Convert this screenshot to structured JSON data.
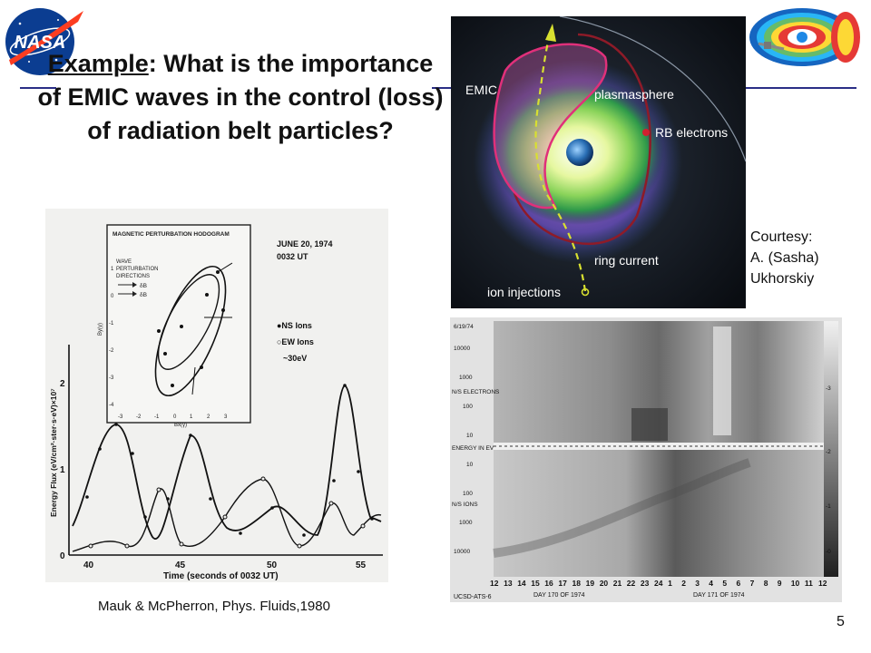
{
  "slide": {
    "title_prefix": "Example",
    "title_rest": ": What is the importance of EMIC waves in the control (loss) of radiation belt particles?",
    "courtesy_lines": [
      "Courtesy:",
      "A. (Sasha)",
      "Ukhorskiy"
    ],
    "citation": "Mauk & McPherron, Phys. Fluids,1980",
    "page_number": "5"
  },
  "logo": {
    "text": "NASA"
  },
  "colors": {
    "accent_rule": "#2a2e86",
    "nasa_blue": "#0b3d91",
    "nasa_red": "#fc3d21"
  },
  "diagram": {
    "labels": {
      "emic": "EMIC",
      "plasmasphere": "plasmasphere",
      "rb_electrons": "RB electrons",
      "ring_current": "ring current",
      "ion_injections": "ion injections"
    }
  },
  "figure_left": {
    "inset_title": "MAGNETIC PERTURBATION HODOGRAM",
    "inset_legend_lines": [
      "WAVE",
      "PERTURBATION",
      "DIRECTIONS"
    ],
    "inset_arrow_labels": [
      "δB",
      "δB"
    ],
    "inset_xticks": [
      "-3",
      "-2",
      "-1",
      "0",
      "1",
      "2",
      "3"
    ],
    "inset_xlabel": "Bx(γ)",
    "inset_yticks": [
      "1",
      "0",
      "-1",
      "-2",
      "-3",
      "-4"
    ],
    "inset_ylabel": "By(γ)",
    "date": "JUNE 20, 1974",
    "time": "0032 UT",
    "legend_ns": "●NS Ions",
    "legend_ew": "○EW Ions",
    "legend_energy": "~30eV",
    "ylabel": "Energy Flux (eV/cm²·ster·s·eV)×10⁷",
    "yticks": [
      "0",
      "1",
      "2"
    ],
    "xticks": [
      "40",
      "45",
      "50",
      "55"
    ],
    "xlabel": "Time (seconds of 0032 UT)"
  },
  "spectrogram": {
    "header": "6/19/74",
    "electrons_label": "N/S ELECTRONS",
    "ions_label": "N/S IONS",
    "energy_label": "ENERGY IN EV",
    "yticks_top": [
      "10000",
      "1000",
      "100",
      "10"
    ],
    "yticks_bottom": [
      "10",
      "100",
      "1000",
      "10000"
    ],
    "hours": [
      "12",
      "13",
      "14",
      "15",
      "16",
      "17",
      "18",
      "19",
      "20",
      "21",
      "22",
      "23",
      "24",
      "1",
      "2",
      "3",
      "4",
      "5",
      "6",
      "7",
      "8",
      "9",
      "10",
      "11",
      "12"
    ],
    "day_label_1": "DAY 170 OF 1974",
    "day_label_2": "DAY 171 OF 1974",
    "source": "UCSD-ATS-6",
    "scale_ticks": [
      "-3",
      "-2",
      "-1",
      "-0"
    ]
  }
}
